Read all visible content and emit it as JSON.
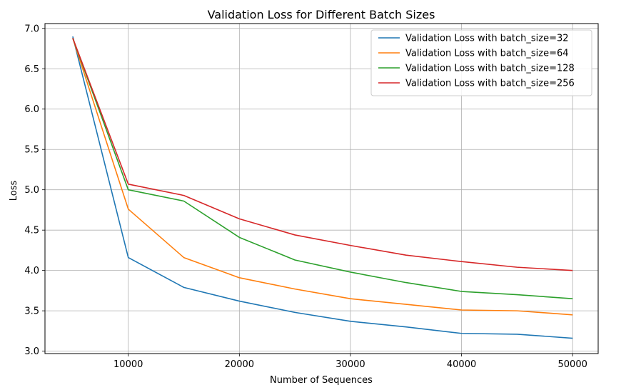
{
  "chart_data": {
    "type": "line",
    "title": "Validation Loss for Different Batch Sizes",
    "xlabel": "Number of Sequences",
    "ylabel": "Loss",
    "xlim": [
      2500,
      52300
    ],
    "ylim": [
      2.97,
      7.06
    ],
    "xticks": [
      10000,
      20000,
      30000,
      40000,
      50000
    ],
    "xtick_labels": [
      "10000",
      "20000",
      "30000",
      "40000",
      "50000"
    ],
    "yticks": [
      3.0,
      3.5,
      4.0,
      4.5,
      5.0,
      5.5,
      6.0,
      6.5,
      7.0
    ],
    "ytick_labels": [
      "3.0",
      "3.5",
      "4.0",
      "4.5",
      "5.0",
      "5.5",
      "6.0",
      "6.5",
      "7.0"
    ],
    "grid": true,
    "legend_position": "top-right",
    "x": [
      5000,
      10000,
      15000,
      20000,
      25000,
      30000,
      35000,
      40000,
      45000,
      50000
    ],
    "series": [
      {
        "name": "Validation Loss with batch_size=32",
        "color": "#1f77b4",
        "values": [
          6.9,
          4.16,
          3.79,
          3.62,
          3.48,
          3.37,
          3.3,
          3.22,
          3.21,
          3.16
        ]
      },
      {
        "name": "Validation Loss with batch_size=64",
        "color": "#ff7f0e",
        "values": [
          6.88,
          4.76,
          4.16,
          3.91,
          3.77,
          3.65,
          3.58,
          3.51,
          3.5,
          3.45
        ]
      },
      {
        "name": "Validation Loss with batch_size=128",
        "color": "#2ca02c",
        "values": [
          6.88,
          5.0,
          4.86,
          4.41,
          4.13,
          3.98,
          3.85,
          3.74,
          3.7,
          3.65
        ]
      },
      {
        "name": "Validation Loss with batch_size=256",
        "color": "#d62728",
        "values": [
          6.88,
          5.07,
          4.93,
          4.64,
          4.44,
          4.31,
          4.19,
          4.11,
          4.04,
          4.0
        ]
      }
    ]
  }
}
